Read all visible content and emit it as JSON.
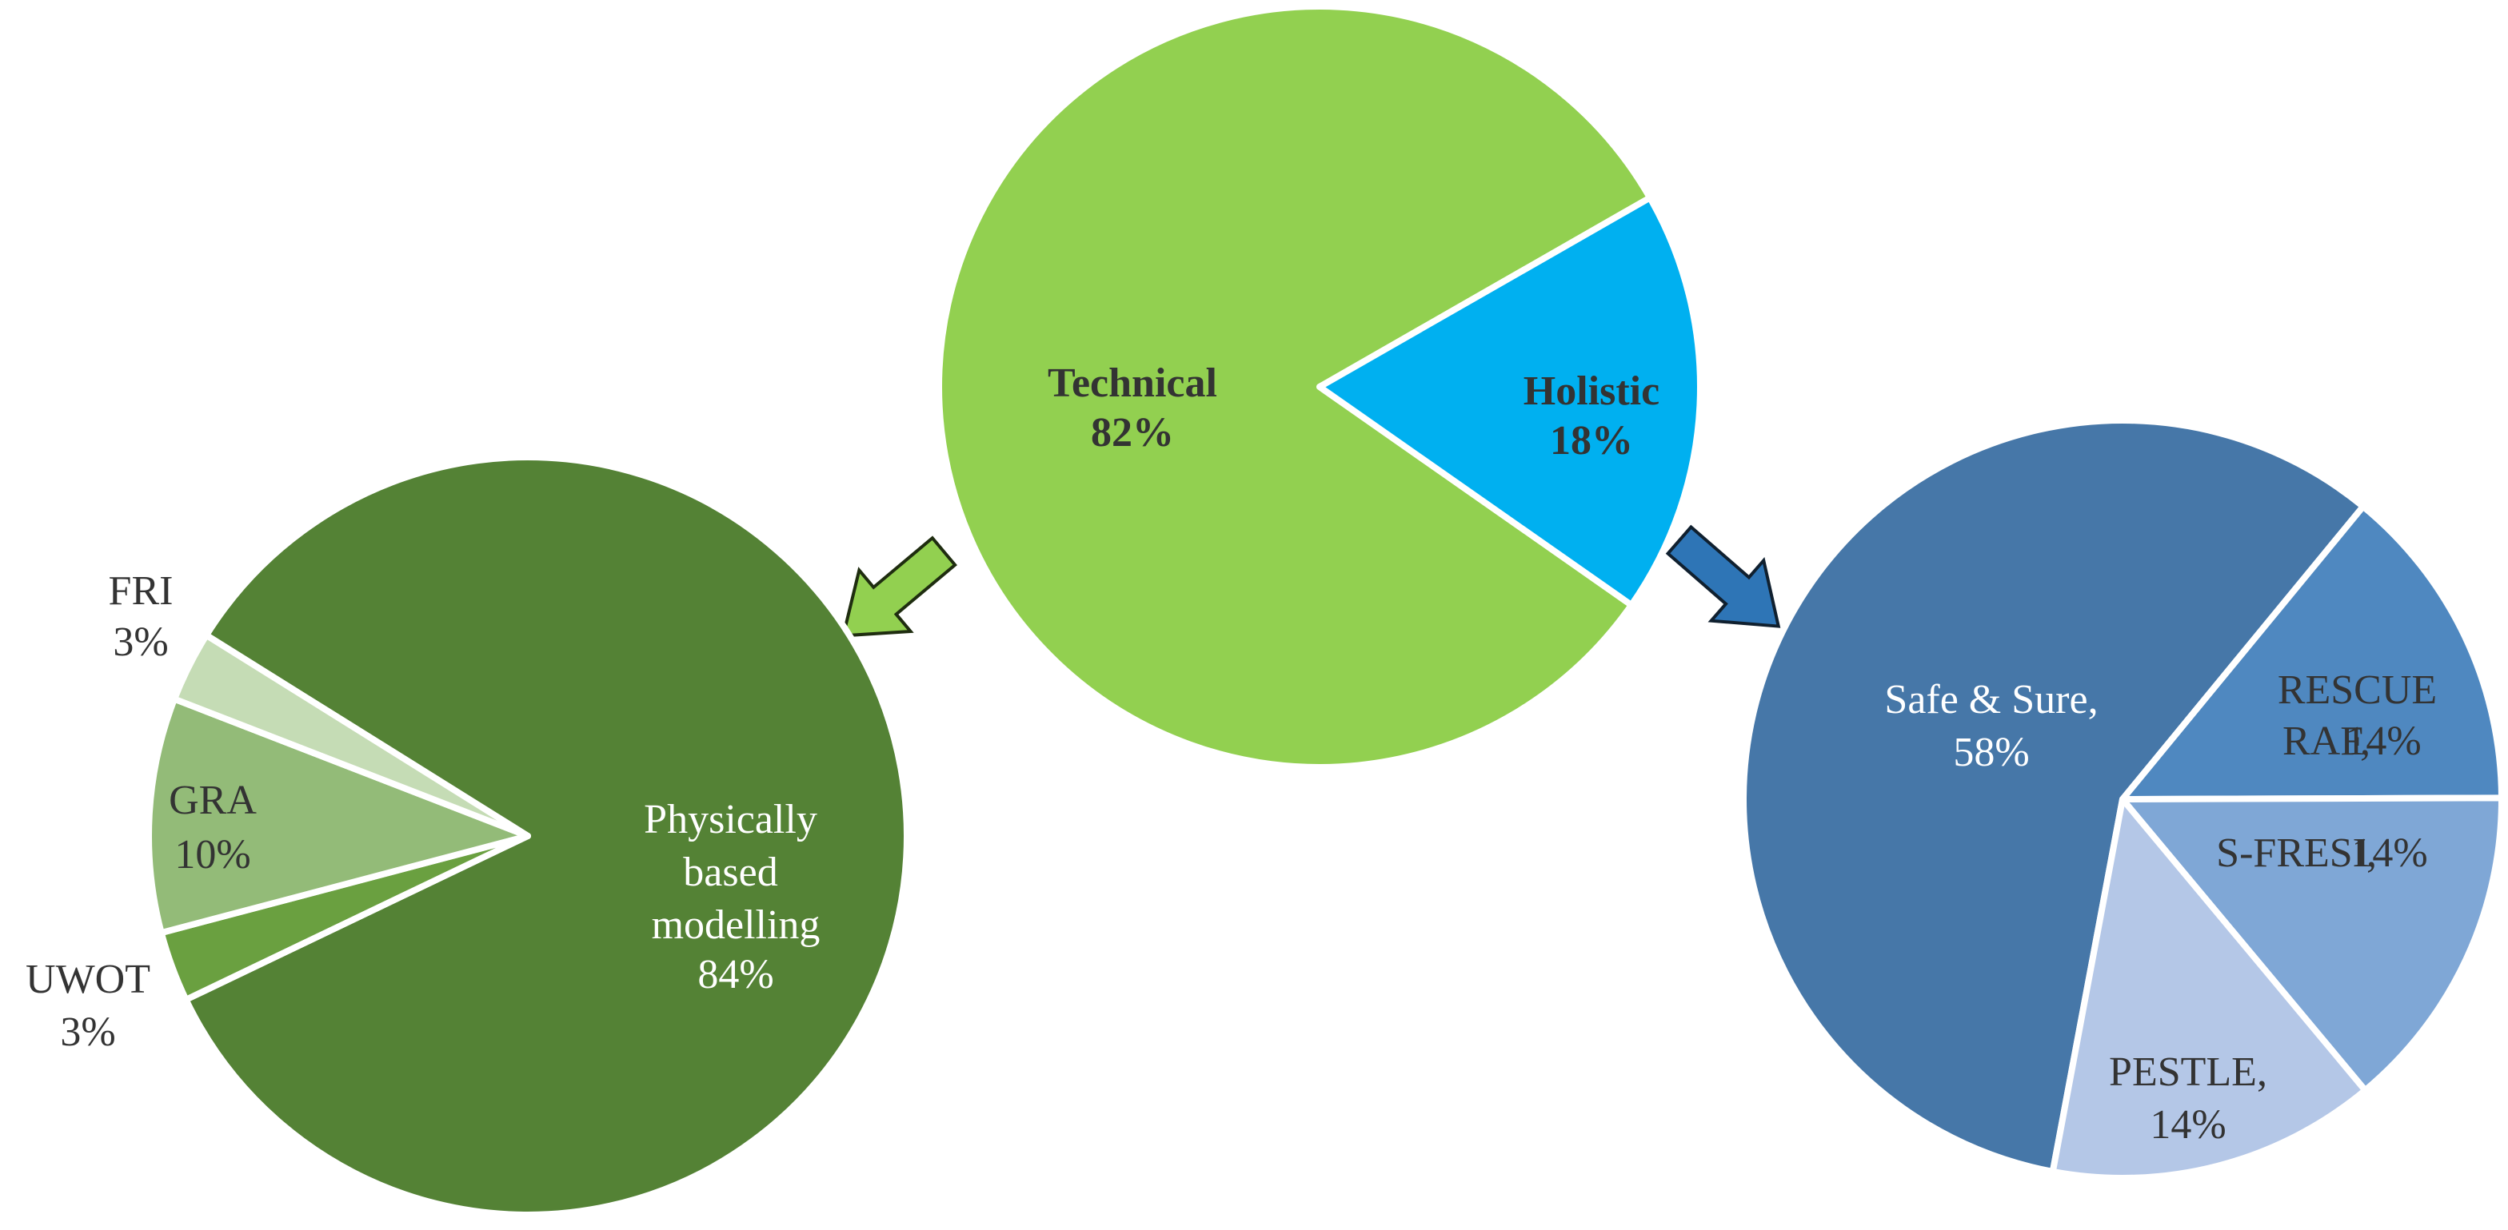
{
  "chart_data": [
    {
      "type": "pie",
      "categories": [
        "Technical",
        "Holistic"
      ],
      "values": [
        82,
        18
      ],
      "value_labels": [
        "82%",
        "18%"
      ],
      "colors": [
        "#92d050",
        "#00b0f0"
      ]
    },
    {
      "type": "pie",
      "categories": [
        "Physically based modelling",
        "UWOT",
        "GRA",
        "FRI"
      ],
      "values": [
        84,
        3,
        10,
        3
      ],
      "value_labels": [
        "84%",
        "3%",
        "10%",
        "3%"
      ],
      "colors": [
        "#548235",
        "#6aa040",
        "#93bb78",
        "#c5dcb5"
      ]
    },
    {
      "type": "pie",
      "categories": [
        "Safe & Sure,",
        "RESCUE RAF,",
        "S-FRESI,",
        "PESTLE,"
      ],
      "values": [
        58,
        14,
        14,
        14
      ],
      "value_labels": [
        "58%",
        "14%",
        "14%",
        "14%"
      ],
      "colors": [
        "#4677a8",
        "#4f88c0",
        "#7fa7d6",
        "#b4c7e7"
      ]
    }
  ]
}
